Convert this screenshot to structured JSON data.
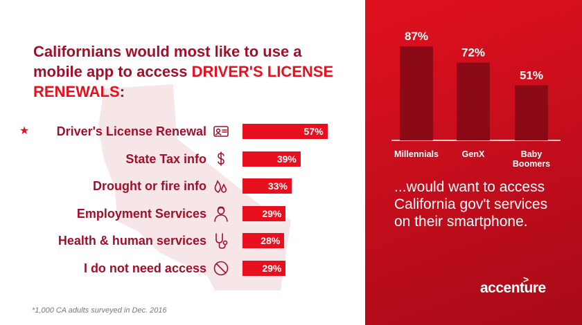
{
  "title": {
    "part1": "Californians",
    "part2": " would most like to use a mobile app to access ",
    "part3": "DRIVER'S LICENSE RENEWALS",
    "part4": ":"
  },
  "chart_data": [
    {
      "type": "bar",
      "orientation": "horizontal",
      "categories": [
        "Driver's License Renewal",
        "State Tax info",
        "Drought or fire info",
        "Employment Services",
        "Health & human services",
        "I do not need access"
      ],
      "values": [
        57,
        39,
        33,
        29,
        28,
        29
      ],
      "value_labels": [
        "57%",
        "39%",
        "33%",
        "29%",
        "28%",
        "29%"
      ],
      "highlighted_category": "Driver's License Renewal",
      "icons": [
        "id-card-icon",
        "dollar-icon",
        "fire-drop-icon",
        "person-icon",
        "stethoscope-icon",
        "prohibited-icon"
      ]
    },
    {
      "type": "bar",
      "categories": [
        "Millennials",
        "GenX",
        "Baby Boomers"
      ],
      "values": [
        87,
        72,
        51
      ],
      "value_labels": [
        "87%",
        "72%",
        "51%"
      ],
      "ylim": [
        0,
        100
      ]
    }
  ],
  "marker": "★",
  "footnote": "*1,000 CA adults surveyed in Dec. 2016",
  "tagline": "...would want to access California gov't services on their smartphone.",
  "brand": {
    "name": "accenture",
    "mark": ">"
  },
  "colors": {
    "accent_red": "#e8101f",
    "dark_red": "#a0102a",
    "panel_red": "#d0101e",
    "column_red": "#8c0a16"
  }
}
